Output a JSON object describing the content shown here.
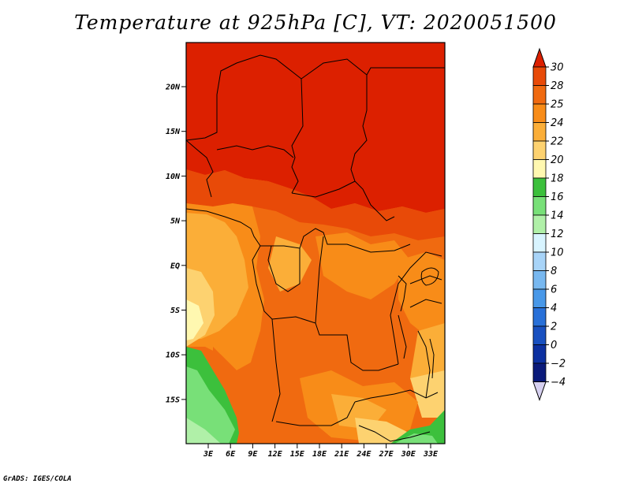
{
  "title": "Temperature at 925hPa [C], VT: 2020051500",
  "footer": "GrADS: IGES/COLA",
  "map": {
    "lat_ticks": [
      "20N",
      "15N",
      "10N",
      "5N",
      "EQ",
      "5S",
      "10S",
      "15S"
    ],
    "lon_ticks": [
      "3E",
      "6E",
      "9E",
      "12E",
      "15E",
      "18E",
      "21E",
      "24E",
      "27E",
      "30E",
      "33E"
    ]
  },
  "colorbar": {
    "levels": [
      "30",
      "28",
      "25",
      "24",
      "22",
      "20",
      "18",
      "16",
      "14",
      "12",
      "10",
      "8",
      "6",
      "4",
      "2",
      "0",
      "-2",
      "-4"
    ],
    "colors": [
      "#dc2000",
      "#e84a08",
      "#f06a10",
      "#f88c18",
      "#fbae38",
      "#fdd270",
      "#fff8b0",
      "#3cc03c",
      "#78e078",
      "#b0f0a8",
      "#d8f4ff",
      "#a8d4f8",
      "#78b8f0",
      "#4898e8",
      "#2870d8",
      "#1850c0",
      "#0c30a0",
      "#0a1a7a",
      "#d6d0f0"
    ]
  },
  "regions": {
    "legend_colors": {
      "t30": "#dc2000",
      "t28": "#e84a08",
      "t25": "#f06a10",
      "t24": "#f88c18",
      "t22": "#fbae38",
      "t20": "#fdd270",
      "t18": "#fff8b0",
      "t16": "#3cc03c",
      "t14": "#78e078",
      "t12": "#b0f0a8"
    }
  }
}
